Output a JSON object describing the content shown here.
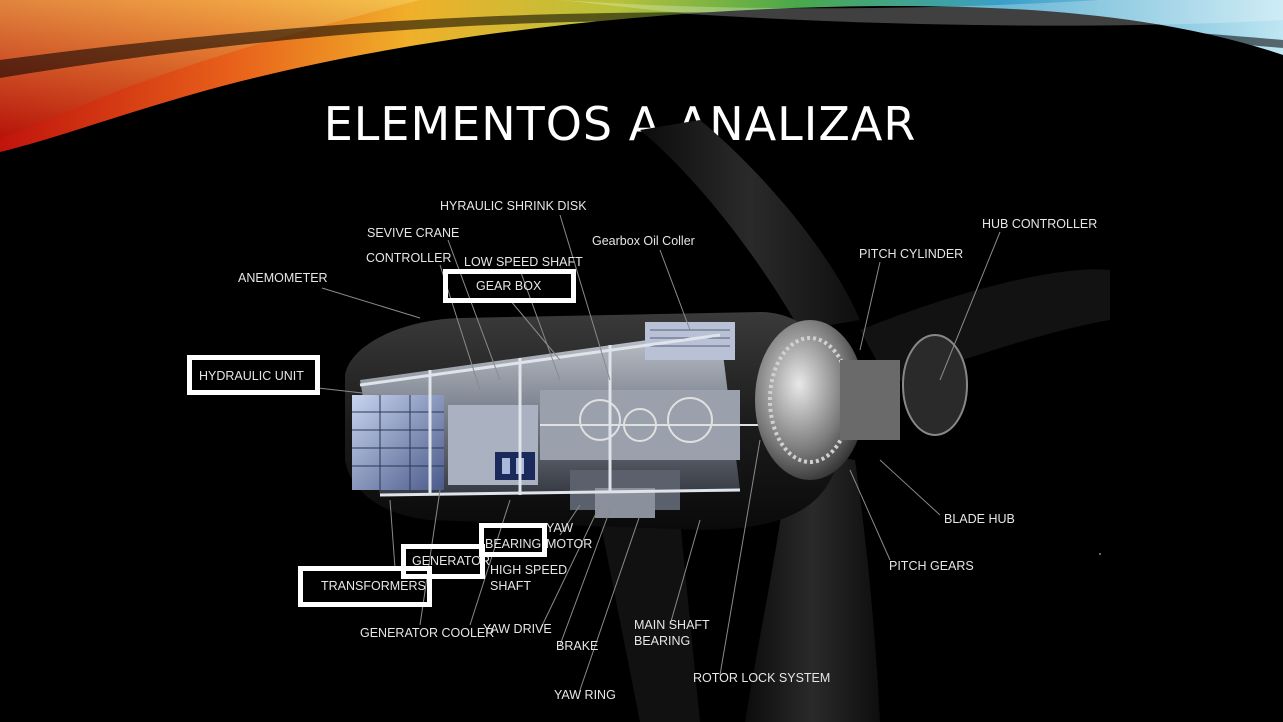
{
  "slide": {
    "title": "ELEMENTOS A ANALIZAR"
  },
  "diagram": {
    "labels": {
      "hydraulic_shrink_disk": "HYRAULIC SHRINK DISK",
      "service_crane": "SEVIVE CRANE",
      "gearbox_oil_cooler": "Gearbox Oil Coller",
      "hub_controller": "HUB CONTROLLER",
      "controller": "CONTROLLER",
      "low_speed_shaft": "LOW SPEED SHAFT",
      "pitch_cylinder": "PITCH CYLINDER",
      "anemometer": "ANEMOMETER",
      "gear_box": "GEAR BOX",
      "hydraulic_unit": "HYDRAULIC UNIT",
      "blade_hub": "BLADE HUB",
      "yaw_motor_1": "YAW",
      "yaw_motor_2": "MOTOR",
      "bearing": "BEARING",
      "generator": "GENERATOR",
      "high_speed_shaft_1": "HIGH SPEED",
      "high_speed_shaft_2": "SHAFT",
      "pitch_gears": "PITCH GEARS",
      "transformers": "TRANSFORMERS",
      "main_shaft_bearing_1": "MAIN SHAFT",
      "main_shaft_bearing_2": "BEARING",
      "generator_cooler": "GENERATOR COOLER",
      "yaw_drive": "YAW DRIVE",
      "brake": "BRAKE",
      "rotor_lock_system": "ROTOR LOCK SYSTEM",
      "yaw_ring": "YAW RING"
    }
  }
}
